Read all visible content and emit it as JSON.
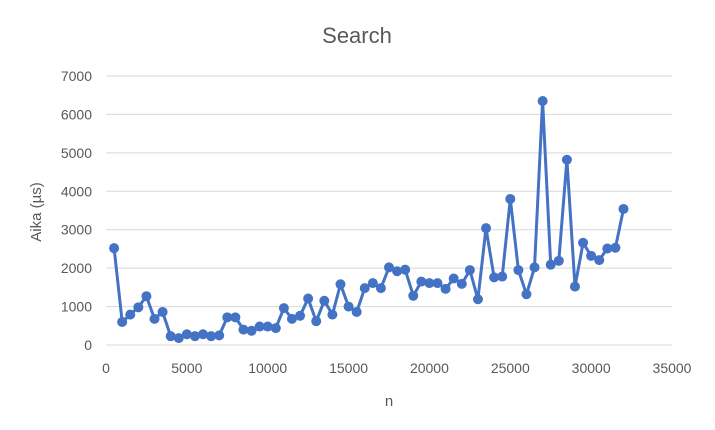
{
  "chart_data": {
    "type": "line",
    "title": "Search",
    "xlabel": "n",
    "ylabel": "Aika (µs)",
    "xlim": [
      0,
      35000
    ],
    "ylim": [
      0,
      7000
    ],
    "xticks": [
      0,
      5000,
      10000,
      15000,
      20000,
      25000,
      30000,
      35000
    ],
    "yticks": [
      0,
      1000,
      2000,
      3000,
      4000,
      5000,
      6000,
      7000
    ],
    "grid": "horizontal",
    "legend": "none",
    "series_color": "#4472c4",
    "series": [
      {
        "markers": true,
        "points": [
          [
            500,
            2520
          ],
          [
            1000,
            600
          ],
          [
            1500,
            790
          ],
          [
            2000,
            980
          ],
          [
            2500,
            1270
          ],
          [
            3000,
            680
          ],
          [
            3500,
            860
          ],
          [
            4000,
            230
          ],
          [
            4500,
            180
          ],
          [
            5000,
            280
          ],
          [
            5500,
            230
          ],
          [
            6000,
            280
          ],
          [
            6500,
            230
          ],
          [
            7000,
            250
          ],
          [
            7500,
            720
          ],
          [
            8000,
            720
          ],
          [
            8500,
            400
          ],
          [
            9000,
            370
          ],
          [
            9500,
            480
          ],
          [
            10000,
            480
          ],
          [
            10500,
            440
          ],
          [
            11000,
            960
          ],
          [
            11500,
            680
          ],
          [
            12000,
            760
          ],
          [
            12500,
            1210
          ],
          [
            13000,
            620
          ],
          [
            13500,
            1150
          ],
          [
            14000,
            790
          ],
          [
            14500,
            1580
          ],
          [
            15000,
            1000
          ],
          [
            15500,
            860
          ],
          [
            16000,
            1480
          ],
          [
            16500,
            1610
          ],
          [
            17000,
            1480
          ],
          [
            17500,
            2020
          ],
          [
            18000,
            1920
          ],
          [
            18500,
            1960
          ],
          [
            19000,
            1280
          ],
          [
            19500,
            1650
          ],
          [
            20000,
            1610
          ],
          [
            20500,
            1610
          ],
          [
            21000,
            1460
          ],
          [
            21500,
            1730
          ],
          [
            22000,
            1590
          ],
          [
            22500,
            1950
          ],
          [
            23000,
            1190
          ],
          [
            23500,
            3040
          ],
          [
            24000,
            1760
          ],
          [
            24500,
            1780
          ],
          [
            25000,
            3800
          ],
          [
            25500,
            1950
          ],
          [
            26000,
            1320
          ],
          [
            26500,
            2020
          ],
          [
            27000,
            6350
          ],
          [
            27500,
            2090
          ],
          [
            28000,
            2190
          ],
          [
            28500,
            4820
          ],
          [
            29000,
            1520
          ],
          [
            29500,
            2660
          ],
          [
            30000,
            2320
          ],
          [
            30500,
            2210
          ],
          [
            31000,
            2510
          ],
          [
            31500,
            2530
          ],
          [
            32000,
            3540
          ]
        ]
      }
    ]
  }
}
